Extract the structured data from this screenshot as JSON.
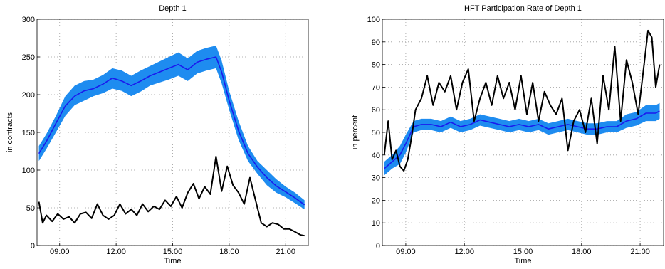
{
  "chart_data": [
    {
      "type": "line",
      "title": "Depth 1",
      "xlabel": "Time",
      "ylabel": "in contracts",
      "xlim": [
        7.8,
        22.2
      ],
      "ylim": [
        0,
        300
      ],
      "xticks": [
        9,
        12,
        15,
        18,
        21
      ],
      "xtick_labels": [
        "09:00",
        "12:00",
        "15:00",
        "18:00",
        "21:00"
      ],
      "yticks": [
        0,
        50,
        100,
        150,
        200,
        250,
        300
      ],
      "ytick_labels": [
        "0",
        "50",
        "100",
        "150",
        "200",
        "250",
        "300"
      ],
      "grid": true,
      "series": [
        {
          "style": "band",
          "color": "#1e8cf0",
          "x": [
            7.9,
            8.3,
            8.8,
            9.3,
            9.8,
            10.3,
            10.8,
            11.3,
            11.8,
            12.3,
            12.8,
            13.3,
            13.8,
            14.3,
            14.8,
            15.3,
            15.8,
            16.3,
            16.8,
            17.3,
            17.6,
            18.0,
            18.5,
            19.0,
            19.5,
            20.0,
            20.5,
            21.0,
            21.5,
            22.0
          ],
          "lower": [
            112,
            128,
            150,
            172,
            186,
            192,
            198,
            202,
            208,
            205,
            198,
            204,
            212,
            216,
            220,
            225,
            218,
            228,
            232,
            235,
            215,
            180,
            140,
            112,
            95,
            80,
            70,
            64,
            56,
            48
          ],
          "upper": [
            132,
            148,
            172,
            198,
            212,
            218,
            220,
            226,
            235,
            232,
            225,
            232,
            238,
            244,
            250,
            256,
            248,
            258,
            262,
            265,
            245,
            205,
            165,
            132,
            112,
            100,
            88,
            78,
            70,
            60
          ]
        },
        {
          "style": "line",
          "color": "#1a1aee",
          "x": [
            7.9,
            8.3,
            8.8,
            9.3,
            9.8,
            10.3,
            10.8,
            11.3,
            11.8,
            12.3,
            12.8,
            13.3,
            13.8,
            14.3,
            14.8,
            15.3,
            15.8,
            16.3,
            16.8,
            17.3,
            17.6,
            18.0,
            18.5,
            19.0,
            19.5,
            20.0,
            20.5,
            21.0,
            21.5,
            22.0
          ],
          "y": [
            122,
            138,
            162,
            185,
            198,
            205,
            208,
            214,
            222,
            218,
            212,
            218,
            225,
            230,
            235,
            240,
            233,
            243,
            247,
            250,
            230,
            192,
            152,
            122,
            104,
            90,
            79,
            71,
            63,
            54
          ]
        },
        {
          "style": "line",
          "color": "#000000",
          "x": [
            7.9,
            8.1,
            8.3,
            8.6,
            8.9,
            9.2,
            9.5,
            9.8,
            10.1,
            10.4,
            10.7,
            11.0,
            11.3,
            11.6,
            11.9,
            12.2,
            12.5,
            12.8,
            13.1,
            13.4,
            13.7,
            14.0,
            14.3,
            14.6,
            14.9,
            15.2,
            15.5,
            15.8,
            16.1,
            16.4,
            16.7,
            17.0,
            17.3,
            17.6,
            17.9,
            18.2,
            18.5,
            18.8,
            19.1,
            19.4,
            19.7,
            20.0,
            20.3,
            20.6,
            20.9,
            21.2,
            21.5,
            21.8,
            22.0
          ],
          "y": [
            58,
            30,
            40,
            32,
            42,
            35,
            38,
            30,
            42,
            44,
            36,
            55,
            40,
            35,
            40,
            55,
            42,
            48,
            40,
            55,
            45,
            52,
            48,
            60,
            52,
            65,
            50,
            70,
            82,
            62,
            78,
            68,
            118,
            72,
            105,
            80,
            70,
            55,
            90,
            60,
            30,
            25,
            30,
            28,
            22,
            22,
            18,
            14,
            13
          ]
        }
      ]
    },
    {
      "type": "line",
      "title": "HFT Participation Rate of Depth 1",
      "xlabel": "Time",
      "ylabel": "in percent",
      "xlim": [
        7.8,
        22.2
      ],
      "ylim": [
        0,
        100
      ],
      "xticks": [
        9,
        12,
        15,
        18,
        21
      ],
      "xtick_labels": [
        "09:00",
        "12:00",
        "15:00",
        "18:00",
        "21:00"
      ],
      "yticks": [
        0,
        10,
        20,
        30,
        40,
        50,
        60,
        70,
        80,
        90,
        100
      ],
      "ytick_labels": [
        "0",
        "10",
        "20",
        "30",
        "40",
        "50",
        "60",
        "70",
        "80",
        "90",
        "100"
      ],
      "grid": true,
      "series": [
        {
          "style": "band",
          "color": "#1e8cf0",
          "x": [
            7.9,
            8.3,
            8.7,
            9.0,
            9.4,
            9.8,
            10.3,
            10.8,
            11.3,
            11.8,
            12.3,
            12.8,
            13.3,
            13.8,
            14.3,
            14.8,
            15.3,
            15.8,
            16.3,
            16.8,
            17.3,
            17.8,
            18.3,
            18.8,
            19.3,
            19.8,
            20.3,
            20.8,
            21.3,
            21.8,
            22.0
          ],
          "lower": [
            31,
            34,
            36,
            41,
            50,
            51,
            51,
            50,
            52,
            50,
            51,
            53,
            52,
            51,
            50,
            51,
            50,
            51,
            49,
            50,
            51,
            50,
            49,
            49,
            50,
            50,
            52,
            53,
            55,
            55,
            56
          ],
          "upper": [
            37,
            40,
            44,
            49,
            55,
            56,
            56,
            55,
            57,
            55,
            56,
            58,
            57,
            56,
            55,
            56,
            55,
            56,
            54,
            55,
            56,
            55,
            54,
            54,
            55,
            55,
            58,
            59,
            62,
            62,
            63
          ]
        },
        {
          "style": "line",
          "color": "#1a1aee",
          "x": [
            7.9,
            8.3,
            8.7,
            9.0,
            9.4,
            9.8,
            10.3,
            10.8,
            11.3,
            11.8,
            12.3,
            12.8,
            13.3,
            13.8,
            14.3,
            14.8,
            15.3,
            15.8,
            16.3,
            16.8,
            17.3,
            17.8,
            18.3,
            18.8,
            19.3,
            19.8,
            20.3,
            20.8,
            21.3,
            21.8,
            22.0
          ],
          "y": [
            34,
            37,
            40,
            45,
            52.5,
            53.5,
            53.5,
            52.5,
            54.5,
            52.5,
            53.5,
            55.5,
            54.5,
            53.5,
            52.5,
            53.5,
            52.5,
            53.5,
            51.5,
            52.5,
            53.5,
            52.5,
            51.5,
            51.5,
            52.5,
            52.5,
            55,
            56,
            58.5,
            58.5,
            59.5
          ]
        },
        {
          "style": "line",
          "color": "#000000",
          "x": [
            7.9,
            8.1,
            8.3,
            8.5,
            8.7,
            8.9,
            9.1,
            9.3,
            9.5,
            9.8,
            10.1,
            10.4,
            10.7,
            11.0,
            11.3,
            11.6,
            11.9,
            12.2,
            12.5,
            12.8,
            13.1,
            13.4,
            13.7,
            14.0,
            14.3,
            14.6,
            14.9,
            15.2,
            15.5,
            15.8,
            16.1,
            16.4,
            16.7,
            17.0,
            17.3,
            17.6,
            17.9,
            18.2,
            18.5,
            18.8,
            19.1,
            19.4,
            19.7,
            20.0,
            20.3,
            20.6,
            20.9,
            21.2,
            21.4,
            21.6,
            21.8,
            22.0
          ],
          "y": [
            40,
            55,
            38,
            42,
            35,
            33,
            38,
            48,
            60,
            65,
            75,
            62,
            72,
            68,
            75,
            60,
            72,
            78,
            55,
            65,
            72,
            62,
            75,
            65,
            72,
            60,
            75,
            58,
            72,
            55,
            68,
            62,
            58,
            65,
            42,
            55,
            60,
            50,
            65,
            45,
            75,
            60,
            88,
            55,
            82,
            72,
            58,
            80,
            95,
            92,
            70,
            80
          ]
        }
      ]
    }
  ]
}
